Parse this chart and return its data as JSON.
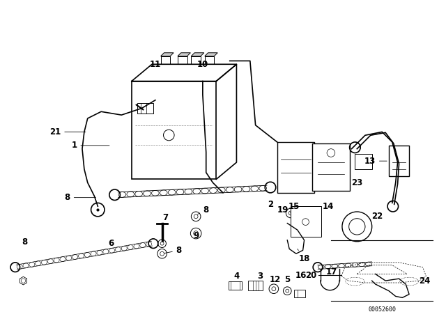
{
  "bg_color": "#ffffff",
  "line_color": "#000000",
  "diagram_number": "00052600",
  "label_fontsize": 8.5,
  "small_fontsize": 6.5
}
